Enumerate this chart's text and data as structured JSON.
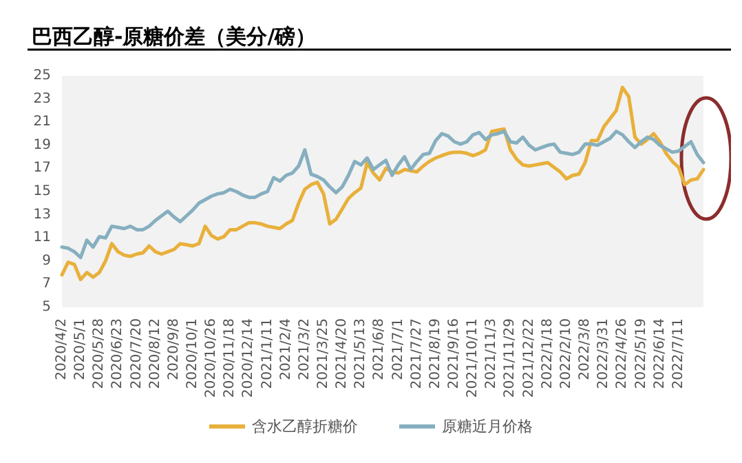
{
  "chart_data": {
    "type": "line",
    "title": "巴西乙醇-原糖价差（美分/磅）",
    "categories": [
      "2020/4/2",
      null,
      null,
      "2020/5/1",
      null,
      null,
      "2020/5/28",
      null,
      null,
      "2020/6/23",
      null,
      null,
      "2020/7/20",
      null,
      null,
      "2020/8/12",
      null,
      null,
      "2020/9/8",
      null,
      null,
      "2020/10/1",
      null,
      null,
      "2020/10/26",
      null,
      null,
      "2020/11/18",
      null,
      null,
      "2020/12/14",
      null,
      null,
      "2021/1/11",
      null,
      null,
      "2021/2/4",
      null,
      null,
      "2021/3/2",
      null,
      null,
      "2021/3/25",
      null,
      null,
      "2021/4/20",
      null,
      null,
      "2021/5/13",
      null,
      null,
      "2021/6/8",
      null,
      null,
      "2021/7/1",
      null,
      null,
      "2021/7/27",
      null,
      null,
      "2021/8/19",
      null,
      null,
      "2021/9/16",
      null,
      null,
      "2021/10/11",
      null,
      null,
      "2021/11/3",
      null,
      null,
      "2021/11/29",
      null,
      null,
      "2021/12/22",
      null,
      null,
      "2022/1/18",
      null,
      null,
      "2022/2/10",
      null,
      null,
      "2022/3/8",
      null,
      null,
      "2022/3/31",
      null,
      null,
      "2022/4/26",
      null,
      null,
      "2022/5/19",
      null,
      null,
      "2022/6/14",
      null,
      null,
      "2022/7/11",
      null,
      null,
      null,
      null
    ],
    "series": [
      {
        "name": "含水乙醇折糖价",
        "color": "#e8b03b",
        "values": [
          7.8,
          8.9,
          8.7,
          7.4,
          8.0,
          7.6,
          8.0,
          9.0,
          10.5,
          9.8,
          9.5,
          9.4,
          9.6,
          9.7,
          10.3,
          9.8,
          9.6,
          9.8,
          10.0,
          10.5,
          10.4,
          10.3,
          10.5,
          12.0,
          11.2,
          10.9,
          11.1,
          11.7,
          11.7,
          12.0,
          12.3,
          12.3,
          12.2,
          12.0,
          11.9,
          11.8,
          12.2,
          12.5,
          14.0,
          15.2,
          15.6,
          15.8,
          14.8,
          12.2,
          12.6,
          13.5,
          14.4,
          14.9,
          15.3,
          17.5,
          16.6,
          16.0,
          17.0,
          16.7,
          16.6,
          16.9,
          16.8,
          16.7,
          17.2,
          17.6,
          17.9,
          18.1,
          18.3,
          18.4,
          18.4,
          18.3,
          18.1,
          18.3,
          18.6,
          20.2,
          20.3,
          20.4,
          18.6,
          17.8,
          17.3,
          17.2,
          17.3,
          17.4,
          17.5,
          17.1,
          16.7,
          16.1,
          16.4,
          16.5,
          17.5,
          19.4,
          19.4,
          20.6,
          21.3,
          22.0,
          24.0,
          23.2,
          19.7,
          19.1,
          19.5,
          20.0,
          19.3,
          18.3,
          17.6,
          17.1,
          15.6,
          16.0,
          16.1,
          16.9
        ]
      },
      {
        "name": "原糖近月价格",
        "color": "#86afbf",
        "values": [
          10.2,
          10.1,
          9.8,
          9.3,
          10.8,
          10.2,
          11.1,
          11.0,
          12.0,
          11.9,
          11.8,
          12.0,
          11.7,
          11.7,
          12.0,
          12.5,
          12.9,
          13.3,
          12.8,
          12.4,
          12.9,
          13.4,
          14.0,
          14.3,
          14.6,
          14.8,
          14.9,
          15.2,
          15.0,
          14.7,
          14.5,
          14.5,
          14.8,
          15.0,
          16.2,
          15.9,
          16.4,
          16.6,
          17.2,
          18.6,
          16.5,
          16.3,
          16.0,
          15.4,
          14.9,
          15.4,
          16.4,
          17.6,
          17.3,
          17.9,
          16.9,
          17.3,
          17.7,
          16.4,
          17.3,
          18.0,
          16.9,
          17.6,
          18.2,
          18.3,
          19.4,
          20.0,
          19.8,
          19.3,
          19.1,
          19.3,
          19.9,
          20.1,
          19.5,
          19.9,
          20.0,
          20.2,
          19.3,
          19.2,
          19.7,
          19.0,
          18.6,
          18.8,
          19.0,
          19.1,
          18.4,
          18.3,
          18.2,
          18.4,
          19.1,
          19.1,
          19.0,
          19.3,
          19.6,
          20.2,
          19.9,
          19.3,
          18.8,
          19.3,
          19.7,
          19.5,
          19.0,
          18.7,
          18.4,
          18.5,
          18.9,
          19.3,
          18.2,
          17.5
        ]
      }
    ],
    "ylim": [
      5,
      25
    ],
    "yticks": [
      5,
      7,
      9,
      11,
      13,
      15,
      17,
      19,
      21,
      23,
      25
    ],
    "grid": false,
    "legend": "bottom",
    "marker": "none",
    "line_style": "solid"
  }
}
